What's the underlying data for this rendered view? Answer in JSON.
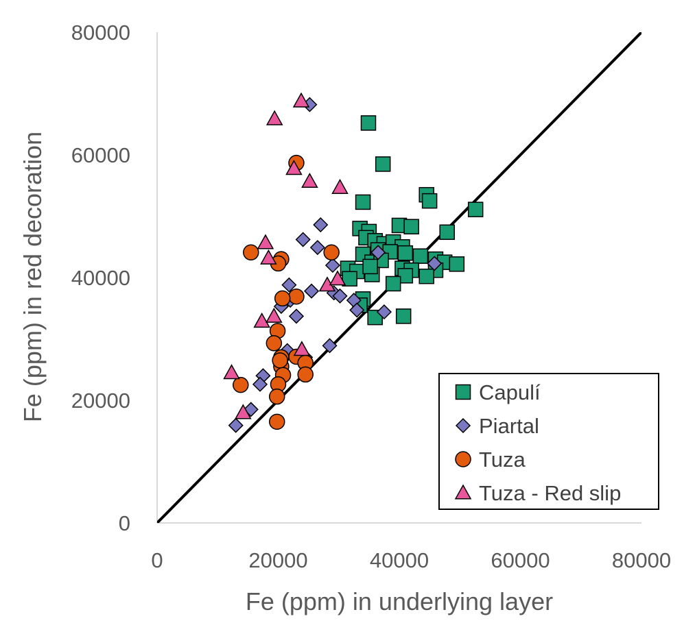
{
  "chart_data": {
    "type": "scatter",
    "title": "",
    "xlabel": "Fe (ppm) in underlying layer",
    "ylabel": "Fe (ppm) in red decoration",
    "xlim": [
      0,
      80000
    ],
    "ylim": [
      0,
      80000
    ],
    "xticks": [
      "0",
      "20000",
      "40000",
      "60000",
      "80000"
    ],
    "yticks": [
      "0",
      "20000",
      "40000",
      "60000",
      "80000"
    ],
    "grid": false,
    "legend_position": "bottom-right",
    "reference_line": {
      "x": [
        0,
        80000
      ],
      "y": [
        0,
        80000
      ],
      "color": "#000000"
    },
    "series": [
      {
        "name": "Capulí",
        "marker": "square",
        "color": "#1a9c72",
        "points": [
          [
            34900,
            65200
          ],
          [
            37300,
            58500
          ],
          [
            34000,
            52300
          ],
          [
            44500,
            53500
          ],
          [
            45000,
            52500
          ],
          [
            52600,
            51100
          ],
          [
            33500,
            48000
          ],
          [
            35000,
            47500
          ],
          [
            40000,
            48500
          ],
          [
            42000,
            48300
          ],
          [
            47900,
            47400
          ],
          [
            34500,
            46500
          ],
          [
            36000,
            46000
          ],
          [
            37500,
            45500
          ],
          [
            39000,
            45800
          ],
          [
            40500,
            45000
          ],
          [
            36500,
            44500
          ],
          [
            38500,
            44200
          ],
          [
            41000,
            44000
          ],
          [
            43500,
            43500
          ],
          [
            34000,
            43800
          ],
          [
            35500,
            42500
          ],
          [
            37000,
            42800
          ],
          [
            46000,
            43000
          ],
          [
            47500,
            42500
          ],
          [
            49500,
            42200
          ],
          [
            31500,
            41500
          ],
          [
            33000,
            41000
          ],
          [
            35500,
            40500
          ],
          [
            35200,
            41800
          ],
          [
            40500,
            41500
          ],
          [
            42000,
            41200
          ],
          [
            46000,
            41200
          ],
          [
            41000,
            40300
          ],
          [
            44500,
            40200
          ],
          [
            31800,
            39800
          ],
          [
            39000,
            39000
          ],
          [
            34000,
            36500
          ],
          [
            33500,
            35500
          ],
          [
            36000,
            33500
          ],
          [
            40700,
            33700
          ]
        ]
      },
      {
        "name": "Piartal",
        "marker": "diamond",
        "color": "#7b78c2",
        "points": [
          [
            25200,
            68200
          ],
          [
            27000,
            48600
          ],
          [
            24100,
            46200
          ],
          [
            26500,
            44900
          ],
          [
            36500,
            44100
          ],
          [
            29000,
            42000
          ],
          [
            45800,
            42300
          ],
          [
            21800,
            38800
          ],
          [
            25500,
            37800
          ],
          [
            29200,
            37500
          ],
          [
            30200,
            37000
          ],
          [
            32500,
            36300
          ],
          [
            20500,
            35300
          ],
          [
            22000,
            36300
          ],
          [
            23000,
            33700
          ],
          [
            33000,
            34700
          ],
          [
            37500,
            34400
          ],
          [
            17500,
            24000
          ],
          [
            17000,
            22600
          ],
          [
            21500,
            28100
          ],
          [
            28500,
            28900
          ],
          [
            24500,
            27000
          ],
          [
            15500,
            18500
          ],
          [
            13000,
            15900
          ]
        ]
      },
      {
        "name": "Tuza",
        "marker": "circle",
        "color": "#e35b0e",
        "points": [
          [
            23000,
            58700
          ],
          [
            15500,
            44100
          ],
          [
            20500,
            43000
          ],
          [
            20000,
            42300
          ],
          [
            28800,
            44100
          ],
          [
            23000,
            36900
          ],
          [
            20700,
            36600
          ],
          [
            19900,
            31300
          ],
          [
            19300,
            29300
          ],
          [
            20500,
            27000
          ],
          [
            23000,
            27100
          ],
          [
            24500,
            26100
          ],
          [
            20500,
            25500
          ],
          [
            20300,
            26500
          ],
          [
            20800,
            24100
          ],
          [
            24500,
            24200
          ],
          [
            20000,
            22600
          ],
          [
            13800,
            22500
          ],
          [
            19800,
            20600
          ],
          [
            19800,
            16500
          ]
        ]
      },
      {
        "name": "Tuza - Red slip",
        "marker": "triangle",
        "color": "#e8569b",
        "points": [
          [
            23800,
            68800
          ],
          [
            19400,
            65900
          ],
          [
            22600,
            57800
          ],
          [
            25200,
            55700
          ],
          [
            30200,
            54700
          ],
          [
            17900,
            45700
          ],
          [
            18400,
            43200
          ],
          [
            28100,
            38800
          ],
          [
            29800,
            39800
          ],
          [
            17300,
            32900
          ],
          [
            19300,
            33700
          ],
          [
            23900,
            28300
          ],
          [
            12300,
            24500
          ],
          [
            14200,
            18000
          ]
        ]
      }
    ]
  }
}
